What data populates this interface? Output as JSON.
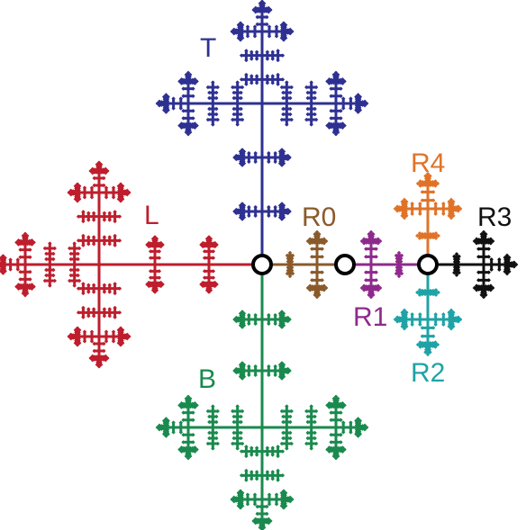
{
  "branches": {
    "T": {
      "label": "T",
      "color": "#2E3192"
    },
    "L": {
      "label": "L",
      "color": "#BE1E2D"
    },
    "B": {
      "label": "B",
      "color": "#1A8A4E"
    },
    "R0": {
      "label": "R0",
      "color": "#8B5A2B"
    },
    "R1": {
      "label": "R1",
      "color": "#8E2A8C"
    },
    "R2": {
      "label": "R2",
      "color": "#1FA3A6"
    },
    "R3": {
      "label": "R3",
      "color": "#111111"
    },
    "R4": {
      "label": "R4",
      "color": "#E07328"
    }
  },
  "junction_nodes": {
    "count": 3,
    "fill": "#ffffff",
    "stroke": "#000000"
  }
}
